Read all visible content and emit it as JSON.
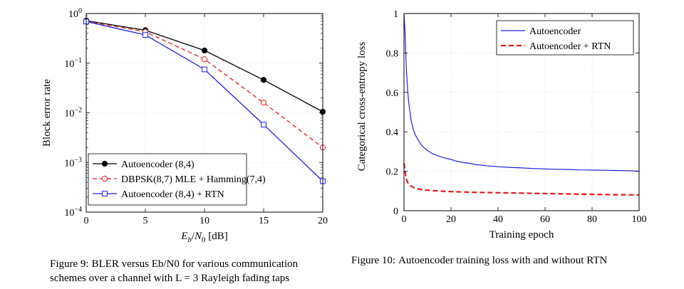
{
  "chart_data": [
    {
      "type": "line",
      "yscale": "log",
      "xlabel": "Eb/N0 [dB]",
      "ylabel": "Block error rate",
      "xlim": [
        0,
        20
      ],
      "ylim": [
        0.0001,
        1
      ],
      "x_ticks": [
        "0",
        "5",
        "10",
        "15",
        "20"
      ],
      "y_ticks": [
        {
          "base": "10",
          "exp": "0"
        },
        {
          "base": "10",
          "exp": "−1"
        },
        {
          "base": "10",
          "exp": "−2"
        },
        {
          "base": "10",
          "exp": "−3"
        },
        {
          "base": "10",
          "exp": "−4"
        }
      ],
      "grid": true,
      "legend_position": "bottom-left",
      "series": [
        {
          "name": "Autoencoder (8,4)",
          "color": "#000000",
          "dash": "solid",
          "marker": "filled-circle",
          "x": [
            0,
            5,
            10,
            15,
            20
          ],
          "values": [
            0.72,
            0.46,
            0.18,
            0.046,
            0.0105
          ]
        },
        {
          "name": "DBPSK(8,7) MLE + Hamming(7,4)",
          "color": "#e41a1c",
          "dash": "dashed",
          "marker": "open-circle",
          "x": [
            0,
            5,
            10,
            15,
            20
          ],
          "values": [
            0.7,
            0.43,
            0.12,
            0.016,
            0.002
          ]
        },
        {
          "name": "Autoencoder (8,4) + RTN",
          "color": "#1f1fe0",
          "dash": "solid",
          "marker": "open-square",
          "x": [
            0,
            5,
            10,
            15,
            20
          ],
          "values": [
            0.69,
            0.37,
            0.075,
            0.0058,
            0.00042
          ]
        }
      ]
    },
    {
      "type": "line",
      "xlabel": "Training epoch",
      "ylabel": "Categorical cross-entropy loss",
      "xlim": [
        0,
        100
      ],
      "ylim": [
        0,
        1
      ],
      "x_ticks": [
        "0",
        "20",
        "40",
        "60",
        "80",
        "100"
      ],
      "y_ticks": [
        "0",
        "0.2",
        "0.4",
        "0.6",
        "0.8",
        "1"
      ],
      "grid": true,
      "legend_position": "top-right",
      "series": [
        {
          "name": "Autoencoder",
          "color": "#1f1fe0",
          "dash": "solid",
          "x": [
            0,
            0.5,
            1,
            1.5,
            2,
            3,
            4,
            5,
            6,
            7,
            8,
            9,
            10,
            12,
            14,
            16,
            18,
            20,
            22,
            25,
            28,
            30,
            35,
            40,
            45,
            50,
            55,
            60,
            65,
            70,
            75,
            80,
            85,
            90,
            95,
            100
          ],
          "values": [
            1.0,
            0.9,
            0.72,
            0.62,
            0.55,
            0.46,
            0.41,
            0.38,
            0.36,
            0.34,
            0.325,
            0.315,
            0.305,
            0.29,
            0.28,
            0.272,
            0.265,
            0.26,
            0.252,
            0.245,
            0.24,
            0.235,
            0.228,
            0.223,
            0.22,
            0.217,
            0.214,
            0.212,
            0.21,
            0.209,
            0.207,
            0.206,
            0.205,
            0.204,
            0.203,
            0.2
          ]
        },
        {
          "name": "Autoencoder + RTN",
          "color": "#e41a1c",
          "dash": "dashed",
          "x": [
            0,
            0.5,
            1,
            1.5,
            2,
            3,
            4,
            5,
            6,
            8,
            10,
            12,
            15,
            18,
            20,
            25,
            30,
            35,
            40,
            50,
            60,
            70,
            80,
            90,
            100
          ],
          "values": [
            0.24,
            0.2,
            0.16,
            0.145,
            0.135,
            0.125,
            0.118,
            0.113,
            0.11,
            0.106,
            0.104,
            0.102,
            0.1,
            0.098,
            0.097,
            0.095,
            0.093,
            0.092,
            0.091,
            0.089,
            0.087,
            0.085,
            0.083,
            0.081,
            0.08
          ]
        }
      ]
    }
  ],
  "figures": {
    "fig9": {
      "caption_label": "Figure 9:",
      "caption_text": "BLER versus Eb/N0 for various communication schemes over a channel with L = 3 Rayleigh fading taps"
    },
    "fig10": {
      "caption_label": "Figure 10:",
      "caption_text": "Autoencoder training loss with and without RTN"
    }
  }
}
